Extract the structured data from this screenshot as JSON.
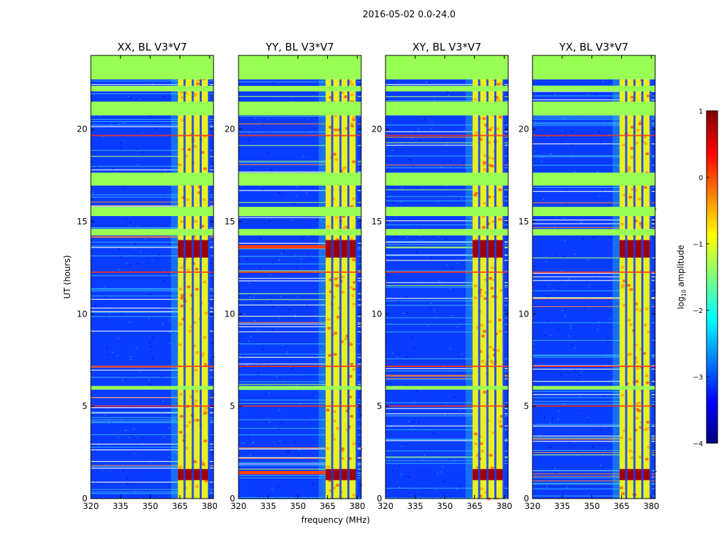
{
  "chart_data": {
    "type": "heatmap",
    "suptitle": "2016-05-02 0.0-24.0",
    "xlabel": "frequency (MHz)",
    "ylabel": "UT (hours)",
    "xlim": [
      320,
      382
    ],
    "ylim": [
      0,
      24
    ],
    "xticks": [
      320,
      335,
      350,
      365,
      380
    ],
    "xtick_labels": [
      "320",
      "335",
      "350",
      "365",
      "380"
    ],
    "yticks": [
      0,
      5,
      10,
      15,
      20
    ],
    "ytick_labels": [
      "0",
      "5",
      "10",
      "15",
      "20"
    ],
    "colorbar": {
      "label": "log10 amplitude",
      "label_main": "log",
      "label_sub": "10",
      "label_tail": " amplitude",
      "range": [
        -4,
        1
      ],
      "ticks": [
        1,
        0,
        -1,
        -2,
        -3,
        -4
      ],
      "tick_labels": [
        "1",
        "0",
        "−1",
        "−2",
        "−3",
        "−4"
      ],
      "colormap": "jet",
      "colors": [
        "#00007f",
        "#0000ff",
        "#007fff",
        "#00ffff",
        "#7fff7f",
        "#ffff00",
        "#ff7f00",
        "#ff0000",
        "#7f0000"
      ]
    },
    "panels": [
      {
        "title": "XX, BL V3*V7",
        "pol": "XX"
      },
      {
        "title": "YY, BL V3*V7",
        "pol": "YY"
      },
      {
        "title": "XY, BL V3*V7",
        "pol": "XY"
      },
      {
        "title": "YX, BL V3*V7",
        "pol": "YX"
      }
    ],
    "flagged_ut_ranges_hours": [
      [
        22.7,
        24.0
      ],
      [
        22.05,
        22.35
      ],
      [
        20.75,
        21.5
      ],
      [
        16.95,
        17.65
      ],
      [
        15.3,
        15.8
      ],
      [
        14.25,
        14.6
      ],
      [
        5.9,
        6.1
      ]
    ],
    "strong_band_mhz": [
      364,
      380
    ],
    "bright_ut_ranges_hours": [
      [
        13.05,
        14.0
      ],
      [
        1.0,
        1.6
      ]
    ],
    "flag_color": "#99ff55"
  }
}
